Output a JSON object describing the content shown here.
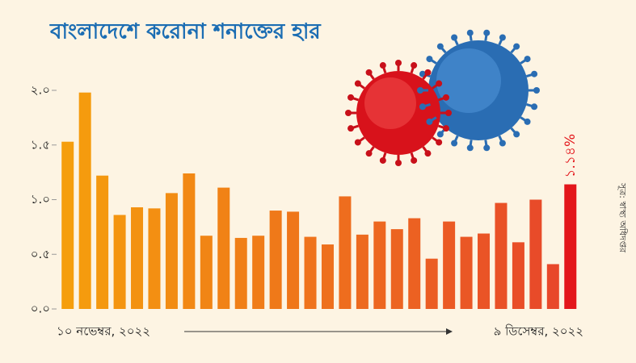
{
  "chart_data": {
    "type": "bar",
    "title": "বাংলাদেশে করোনা শনাক্তের হার",
    "source": "সূত্র: স্বাস্থ্য অধিদপ্তর",
    "categories": [
      "১০ নভেম্বর, ২০২২",
      null,
      null,
      null,
      null,
      null,
      null,
      null,
      null,
      null,
      null,
      null,
      null,
      null,
      null,
      null,
      null,
      null,
      null,
      null,
      null,
      null,
      null,
      null,
      null,
      null,
      null,
      null,
      null,
      "৯ ডিসেম্বর, ২০২২"
    ],
    "values": [
      1.53,
      1.98,
      1.22,
      0.86,
      0.93,
      0.92,
      1.06,
      1.24,
      0.67,
      1.11,
      0.65,
      0.67,
      0.9,
      0.89,
      0.66,
      0.59,
      1.03,
      0.68,
      0.8,
      0.73,
      0.83,
      0.46,
      0.8,
      0.66,
      0.69,
      0.97,
      0.61,
      1.0,
      0.41,
      1.14
    ],
    "value_labels": [
      null,
      null,
      null,
      null,
      null,
      null,
      null,
      null,
      null,
      null,
      null,
      null,
      null,
      null,
      null,
      null,
      null,
      null,
      null,
      null,
      null,
      null,
      null,
      null,
      null,
      null,
      null,
      null,
      null,
      "১.১৪%"
    ],
    "colors": [
      "#f59e0d",
      "#f59b0e",
      "#f4980f",
      "#f49510",
      "#f39211",
      "#f38f12",
      "#f28c13",
      "#f28814",
      "#f18515",
      "#f18216",
      "#f07f17",
      "#f07c18",
      "#ef7919",
      "#ef761a",
      "#ef731c",
      "#ee701d",
      "#ee6d1e",
      "#ed6a1f",
      "#ed6720",
      "#ec6421",
      "#ec6122",
      "#eb5d23",
      "#eb5a24",
      "#ea5725",
      "#ea5426",
      "#e95127",
      "#e94e28",
      "#e84b29",
      "#e8482a",
      "#e3161b"
    ],
    "ylim": [
      0,
      2.0
    ],
    "yticks": [
      {
        "value": 0,
        "label": "০.০"
      },
      {
        "value": 0.5,
        "label": "০.৫"
      },
      {
        "value": 1.0,
        "label": "১.০"
      },
      {
        "value": 1.5,
        "label": "১.৫"
      },
      {
        "value": 2.0,
        "label": "২.০"
      }
    ],
    "grid": false
  }
}
